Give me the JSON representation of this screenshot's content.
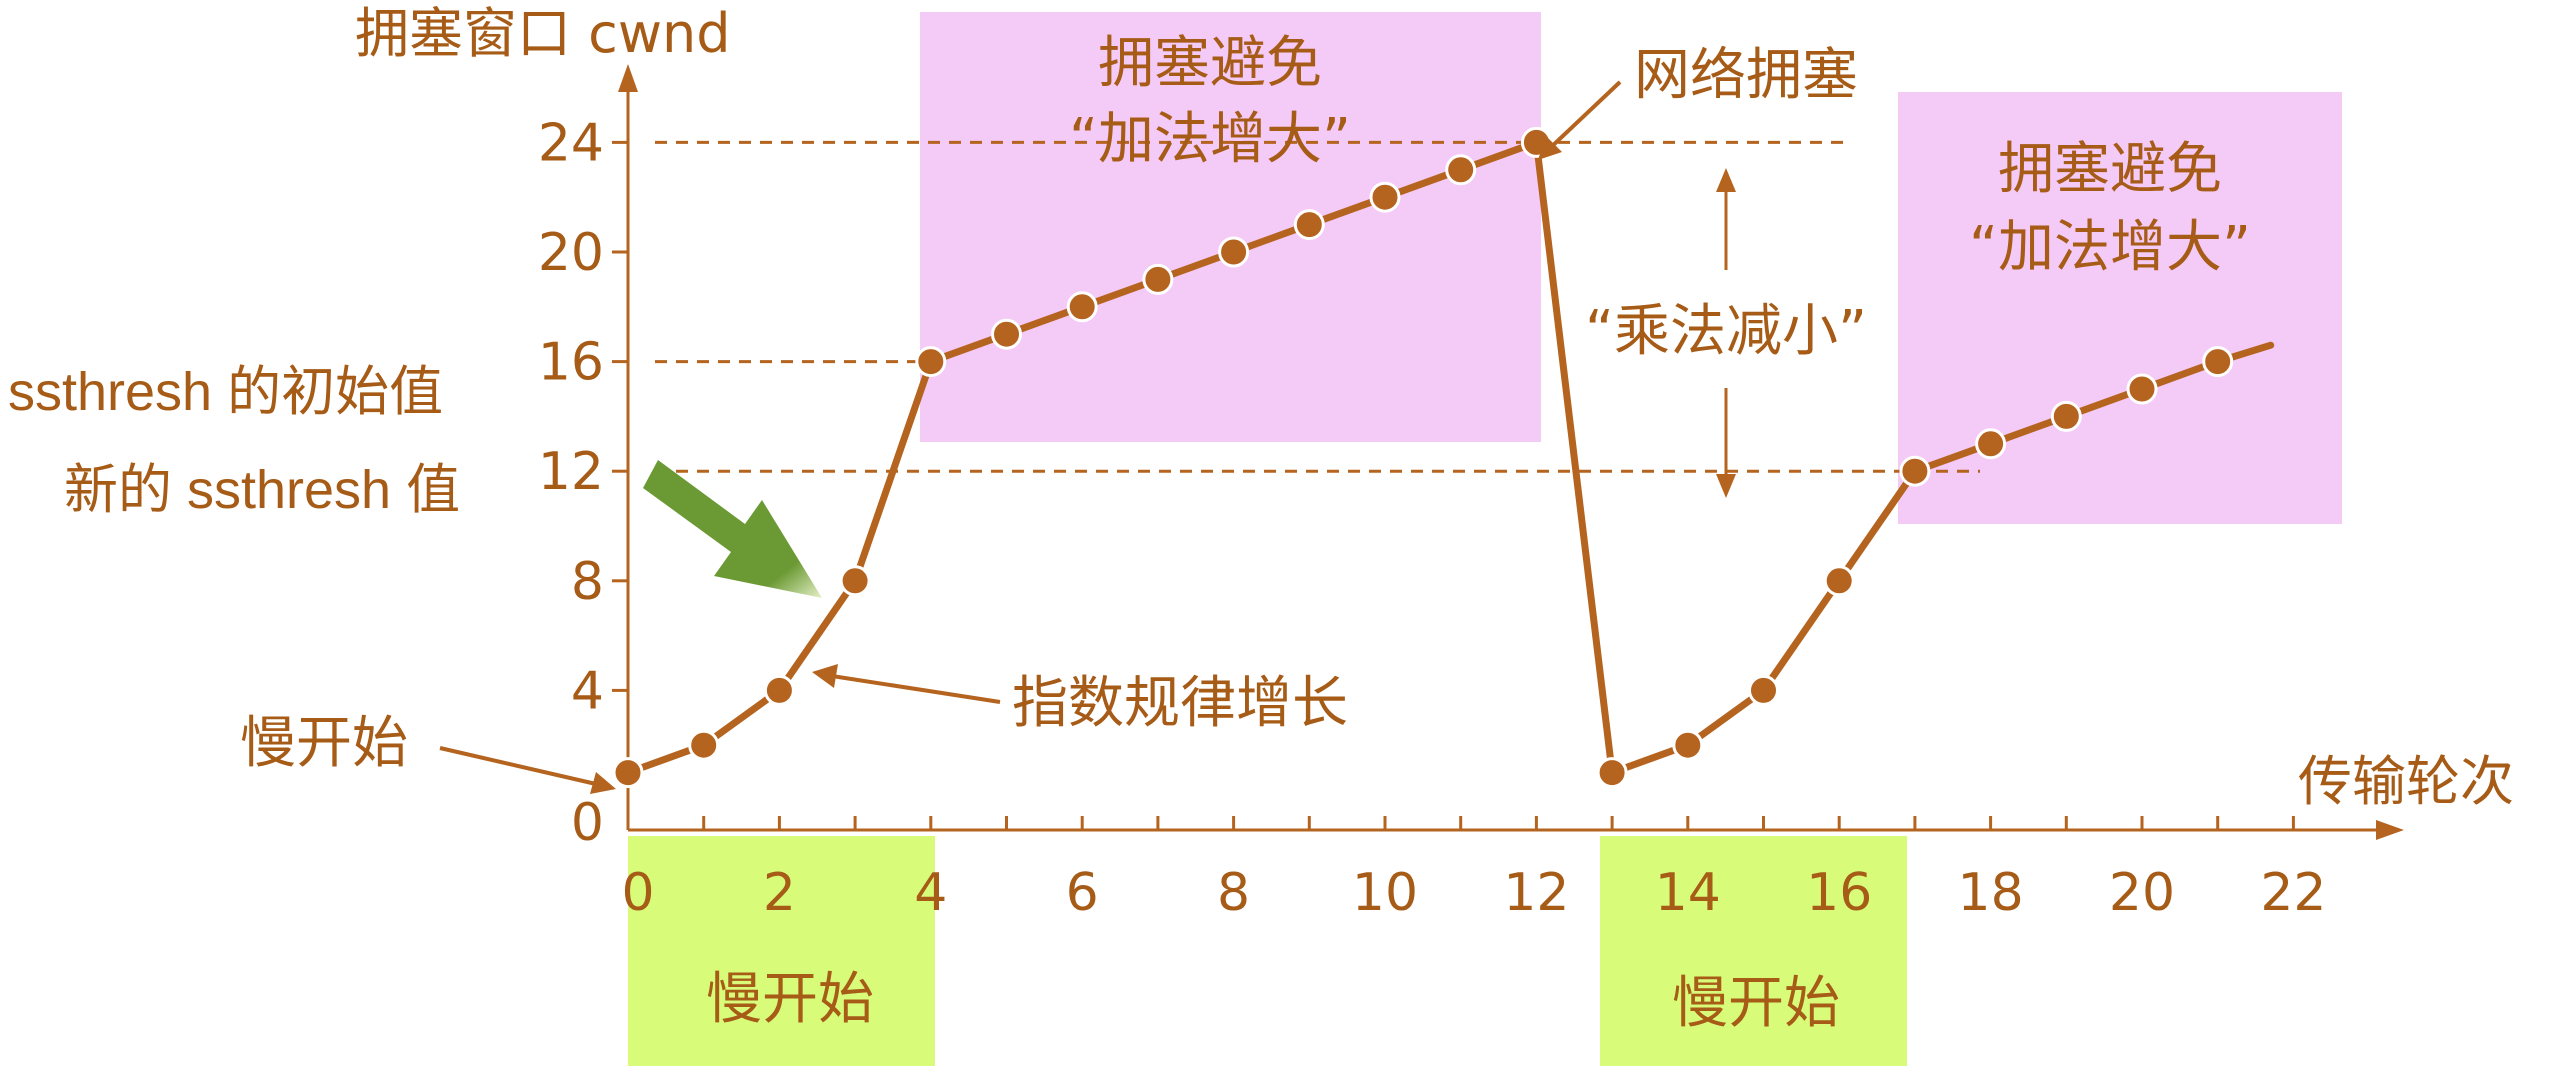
{
  "colors": {
    "main": "#b5641f",
    "text": "#a65b17",
    "pink": "#f4cbf6",
    "green": "#d8fc7a",
    "arrow": "#6b9a34"
  },
  "y_axis_title": "拥塞窗口 cwnd",
  "x_axis_title": "传输轮次",
  "annotations": {
    "ca1_line1": "拥塞避免",
    "ca1_line2": "“加法增大”",
    "congestion": "网络拥塞",
    "ca2_line1": "拥塞避免",
    "ca2_line2": "“加法增大”",
    "mult_decrease": "“乘法减小”",
    "ssthresh_initial": "ssthresh 的初始值",
    "ssthresh_new": "新的 ssthresh 值",
    "exponential": "指数规律增长",
    "slow_start_pointer": "慢开始",
    "slow_start_box1": "慢开始",
    "slow_start_box2": "慢开始"
  },
  "chart_data": {
    "type": "line",
    "title": "",
    "xlabel": "传输轮次",
    "ylabel": "拥塞窗口 cwnd",
    "xlim": [
      0,
      23
    ],
    "ylim": [
      0,
      26
    ],
    "x_ticks": [
      0,
      2,
      4,
      6,
      8,
      10,
      12,
      14,
      16,
      18,
      20,
      22
    ],
    "y_ticks": [
      0,
      4,
      8,
      12,
      16,
      20,
      24
    ],
    "series": [
      {
        "points": [
          [
            0,
            1
          ],
          [
            1,
            2
          ],
          [
            2,
            4
          ],
          [
            3,
            8
          ],
          [
            4,
            16
          ],
          [
            5,
            17
          ],
          [
            6,
            18
          ],
          [
            7,
            19
          ],
          [
            8,
            20
          ],
          [
            9,
            21
          ],
          [
            10,
            22
          ],
          [
            11,
            23
          ],
          [
            12,
            24
          ],
          [
            13,
            1
          ],
          [
            14,
            2
          ],
          [
            15,
            4
          ],
          [
            16,
            8
          ],
          [
            17,
            12
          ],
          [
            18,
            13
          ],
          [
            19,
            14
          ],
          [
            20,
            15
          ],
          [
            21,
            16
          ]
        ],
        "extends_to": [
          21.7,
          16.6
        ]
      }
    ],
    "thresholds": [
      24,
      16,
      12
    ],
    "grid": false,
    "legend": "none"
  }
}
